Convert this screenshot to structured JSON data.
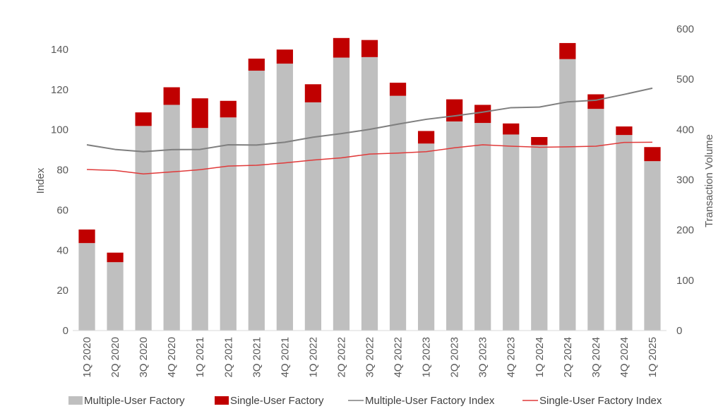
{
  "chart_data": {
    "type": "bar",
    "stacked": true,
    "categories": [
      "1Q 2020",
      "2Q 2020",
      "3Q 2020",
      "4Q 2020",
      "1Q 2021",
      "2Q 2021",
      "3Q 2021",
      "4Q 2021",
      "1Q 2022",
      "2Q 2022",
      "3Q 2022",
      "4Q 2022",
      "1Q 2023",
      "2Q 2023",
      "3Q 2023",
      "4Q 2023",
      "1Q 2024",
      "2Q 2024",
      "3Q 2024",
      "4Q 2024",
      "1Q 2025"
    ],
    "y_left": {
      "label": "Index",
      "ylim": [
        0,
        140
      ],
      "ticks": [
        0,
        20,
        40,
        60,
        80,
        100,
        120,
        140
      ]
    },
    "y_right": {
      "label": "Transaction Volume",
      "ylim": [
        0,
        600
      ],
      "ticks": [
        0,
        100,
        200,
        300,
        400,
        500,
        600
      ]
    },
    "series": [
      {
        "name": "Multiple-User Factory",
        "type": "bar",
        "axis": "right",
        "color": "#bfbfbf",
        "values": [
          174,
          136,
          407,
          449,
          403,
          424,
          517,
          531,
          454,
          543,
          544,
          467,
          372,
          416,
          413,
          390,
          369,
          540,
          441,
          389,
          337
        ]
      },
      {
        "name": "Single-User Factory",
        "type": "bar",
        "axis": "right",
        "color": "#c00000",
        "values": [
          27,
          19,
          27,
          35,
          59,
          33,
          24,
          28,
          36,
          39,
          34,
          26,
          25,
          44,
          36,
          22,
          16,
          32,
          29,
          17,
          28
        ]
      },
      {
        "name": "Multiple-User Factory Index",
        "type": "line",
        "axis": "left",
        "color": "#7f7f7f",
        "values": [
          92.5,
          90.2,
          89.1,
          90.1,
          90.2,
          92.5,
          92.4,
          93.8,
          96.3,
          98.1,
          100.2,
          102.8,
          105.2,
          106.9,
          108.8,
          111.0,
          111.3,
          113.9,
          114.7,
          117.6,
          120.7
        ]
      },
      {
        "name": "Single-User Factory Index",
        "type": "line",
        "axis": "left",
        "color": "#e03a3a",
        "values": [
          80.2,
          79.7,
          78.0,
          79.0,
          80.1,
          81.9,
          82.3,
          83.5,
          84.9,
          86.0,
          87.9,
          88.4,
          89.1,
          91.0,
          92.5,
          91.8,
          91.3,
          91.5,
          91.8,
          93.7,
          93.8
        ]
      }
    ],
    "legend_position": "bottom",
    "grid": false
  }
}
